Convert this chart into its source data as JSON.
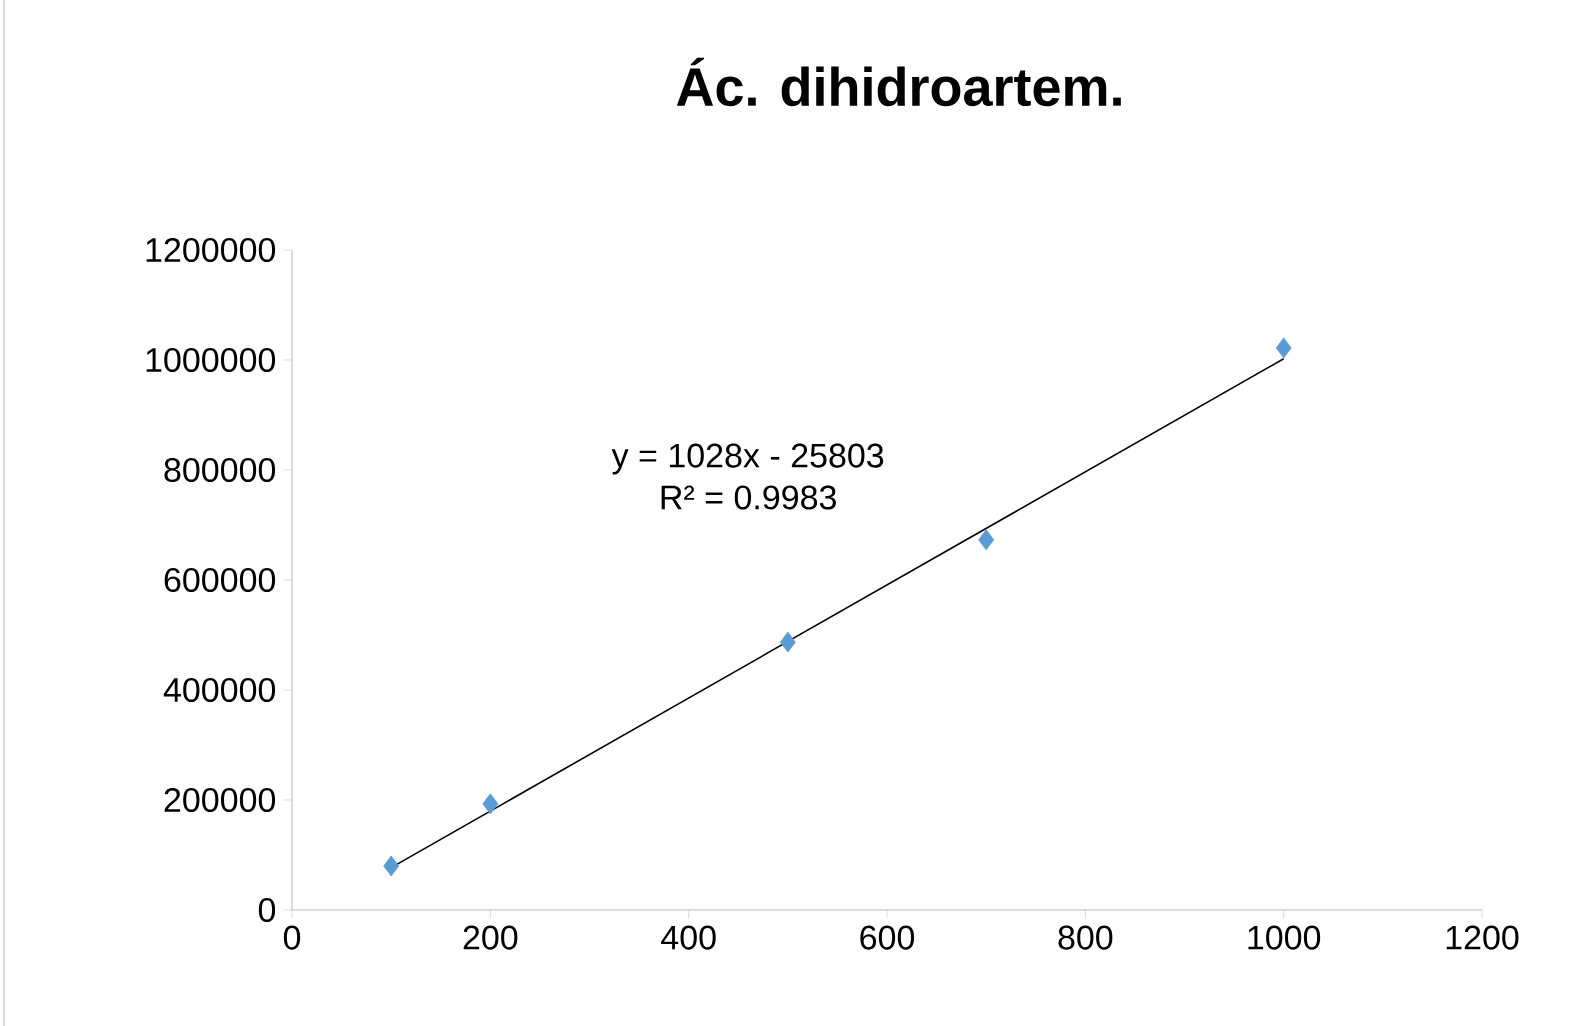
{
  "chart_data": {
    "type": "scatter",
    "title": "Ác. dihidroartem.",
    "x": [
      100,
      200,
      500,
      700,
      1000
    ],
    "series": [
      {
        "color": "#5b9bd5",
        "values": [
          80000,
          193000,
          487000,
          673000,
          1022000
        ],
        "marker": "diamond"
      },
      {
        "type": "line",
        "color": "#000000",
        "x": [
          100,
          1000
        ],
        "values": [
          77000,
          1002197
        ],
        "marker": "none"
      }
    ],
    "annotations": [
      "y = 1028x - 25803",
      "R² = 0.9983"
    ],
    "xlim": [
      0,
      1200
    ],
    "xticks": [
      0,
      200,
      400,
      600,
      800,
      1000,
      1200
    ],
    "ylim": [
      0,
      1200000
    ],
    "yticks": [
      0,
      200000,
      400000,
      600000,
      800000,
      1000000,
      1200000
    ],
    "grid": false,
    "legend": false
  }
}
